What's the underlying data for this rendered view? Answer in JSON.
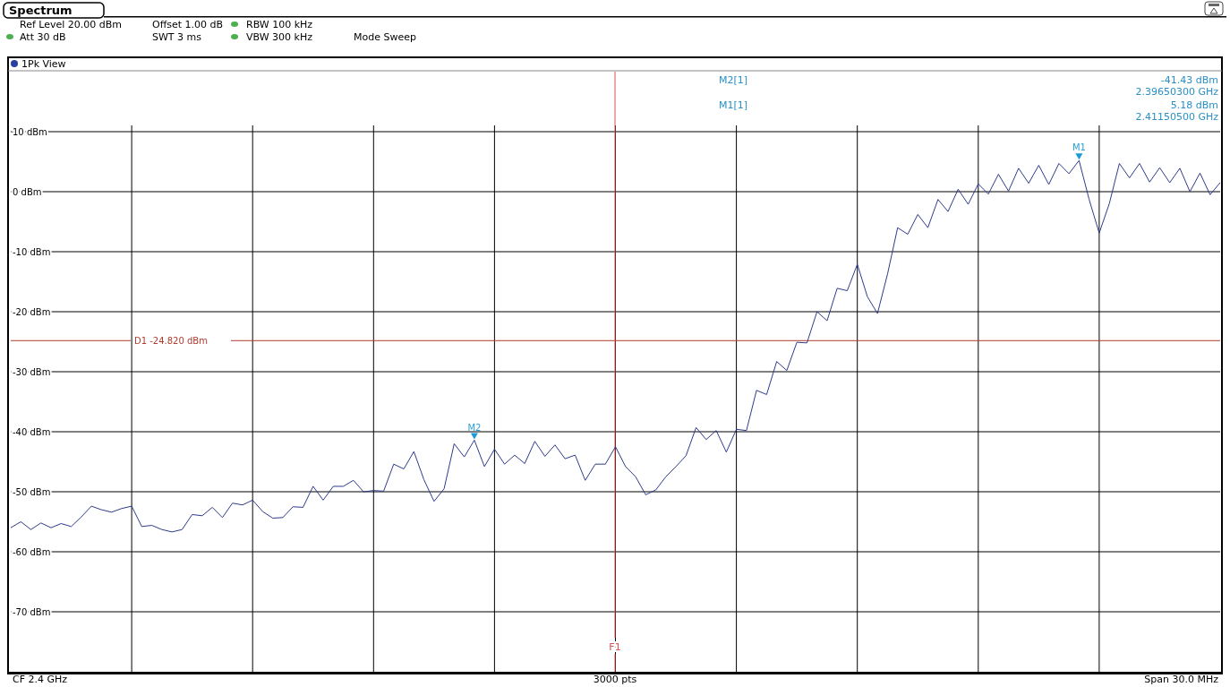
{
  "chart_data": {
    "type": "line",
    "title": "Spectrum",
    "annotations": [
      "1Pk View",
      "Ref Level 20.00 dBm",
      "Offset 1.00 dB",
      "RBW 100 kHz",
      "Att 30 dB",
      "SWT 3 ms",
      "VBW 300 kHz",
      "Mode Sweep",
      "M2[1]",
      "-41.43 dBm",
      "2.39650300 GHz",
      "M1[1]",
      "5.18 dBm",
      "2.41150500 GHz",
      "CF 2.4 GHz",
      "3000 pts",
      "Span 30.0 MHz",
      {
        "text": "M1",
        "y": 5.18
      },
      {
        "text": "M2",
        "y": -41.43
      },
      "F1"
    ],
    "categories": [
      null,
      null,
      null,
      null,
      null,
      null,
      null,
      null,
      null,
      null,
      null,
      null,
      null,
      null,
      null,
      null,
      null,
      null,
      null,
      null,
      null,
      null,
      null,
      null,
      null,
      null,
      null,
      null,
      null,
      null,
      null,
      null,
      null,
      null,
      null,
      null,
      null,
      null,
      null,
      null,
      null,
      null,
      null,
      null,
      null,
      null,
      null,
      null,
      null,
      null,
      null,
      null,
      null,
      null,
      null,
      null,
      null,
      null,
      null,
      null,
      null,
      null,
      null,
      null,
      null,
      null,
      null,
      null,
      null,
      null,
      null,
      null,
      null,
      null,
      null,
      null,
      null,
      null,
      null,
      null,
      null,
      null,
      null,
      null,
      null,
      null,
      null,
      null,
      null,
      null,
      null,
      null,
      null,
      null,
      null,
      null,
      null,
      null,
      null,
      null,
      null,
      null,
      null,
      null,
      null,
      null,
      null,
      null,
      null,
      null,
      null,
      null,
      null,
      null,
      null,
      null,
      null,
      null,
      null,
      null,
      null
    ],
    "series": [
      {
        "color": "#2e3a8c",
        "values": [
          -56,
          -55,
          -56.3,
          -55.2,
          -56,
          -55.3,
          -55.8,
          -54.2,
          -52.4,
          -53,
          -53.4,
          -52.8,
          -52.4,
          -55.8,
          -55.6,
          -56.3,
          -56.7,
          -56.3,
          -53.8,
          -54,
          -52.6,
          -54.3,
          -51.9,
          -52.2,
          -51.4,
          -53.3,
          -54.4,
          -54.3,
          -52.5,
          -52.6,
          -49.1,
          -51.4,
          -49.1,
          -49.1,
          -48.1,
          -50,
          -49.8,
          -49.9,
          -45.4,
          -46.2,
          -43.3,
          -48,
          -51.6,
          -49.5,
          -42,
          -44.2,
          -41.4,
          -45.8,
          -42.9,
          -45.4,
          -43.9,
          -45.3,
          -41.6,
          -44.1,
          -42.2,
          -44.5,
          -43.9,
          -48.1,
          -45.4,
          -45.4,
          -42.5,
          -45.8,
          -47.5,
          -50.5,
          -49.7,
          -47.5,
          -45.8,
          -44,
          -39.3,
          -41.3,
          -39.8,
          -43.4,
          -39.6,
          -39.8,
          -33.1,
          -33.8,
          -28.3,
          -29.8,
          -25.1,
          -25.2,
          -20,
          -21.5,
          -16.1,
          -16.5,
          -12.1,
          -17.5,
          -20.3,
          -13.7,
          -6,
          -7.1,
          -3.8,
          -6,
          -1.3,
          -3.3,
          0.4,
          -2.1,
          1.3,
          -0.4,
          2.9,
          0.1,
          3.9,
          1.4,
          4.4,
          1.2,
          4.7,
          3,
          5.2,
          -1.3,
          -6.9,
          -2,
          4.7,
          2.3,
          4.7,
          1.6,
          4,
          1.5,
          3.9,
          0,
          3.1,
          -0.5,
          1.5
        ]
      }
    ],
    "ylim": [
      -80,
      20
    ],
    "yticks": [
      {
        "value": -70,
        "label": "-70 dBm"
      },
      {
        "value": -60,
        "label": "-60 dBm"
      },
      {
        "value": -50,
        "label": "-50 dBm"
      },
      {
        "value": -40,
        "label": "-40 dBm"
      },
      {
        "value": -30,
        "label": "-30 dBm"
      },
      {
        "value": -20,
        "label": "-20 dBm"
      },
      {
        "value": -10,
        "label": "-10 dBm"
      },
      {
        "value": 0,
        "label": "0 dBm"
      },
      {
        "value": 10,
        "label": "10 dBm"
      }
    ],
    "tick_labels": "y",
    "grid": true,
    "line_style": "solid",
    "ref_lines": [
      {
        "axis": "y",
        "value": -24.82,
        "label": "D1 -24.820 dBm",
        "color": "#b03a2e"
      }
    ]
  }
}
